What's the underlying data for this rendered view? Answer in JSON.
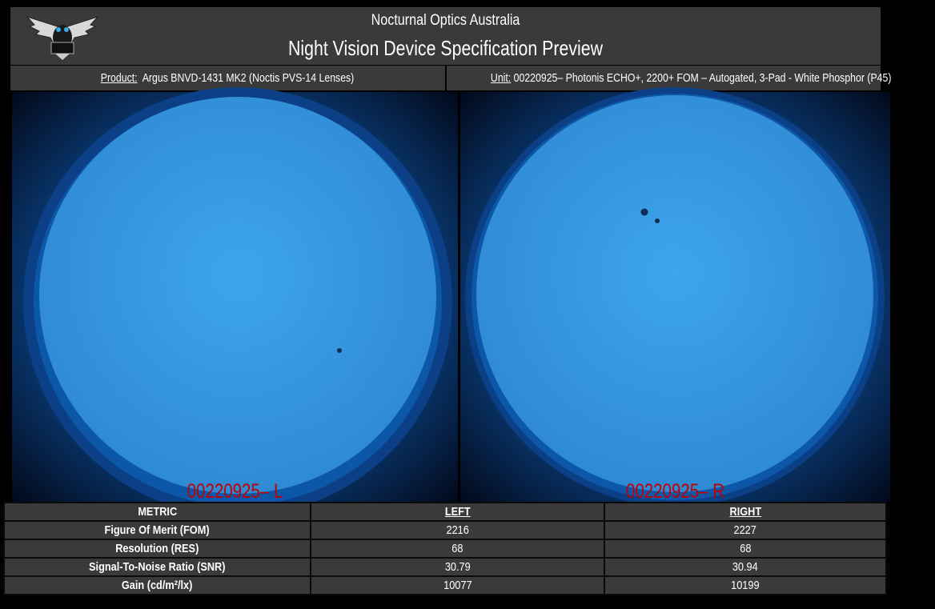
{
  "header": {
    "logo": "owl-logo",
    "company": "Nocturnal Optics Australia",
    "title": "Night Vision Device Specification Preview"
  },
  "product": {
    "label": "Product:",
    "value": "Argus BNVD-1431 MK2 (Noctis PVS-14 Lenses)"
  },
  "unit": {
    "label": "Unit:",
    "value": "00220925– Photonis ECHO+, 2200+ FOM – Autogated, 3-Pad - White Phosphor (P45)"
  },
  "scopes": {
    "left_label": "00220925– L",
    "right_label": "00220925– R",
    "label_color": "#c00000",
    "phosphor_color": "#3a9be0"
  },
  "table": {
    "headers": [
      "METRIC",
      "LEFT",
      "RIGHT"
    ],
    "rows": [
      {
        "metric": "Figure Of Merit (FOM)",
        "left": "2216",
        "right": "2227"
      },
      {
        "metric": "Resolution (RES)",
        "left": "68",
        "right": "68"
      },
      {
        "metric": "Signal-To-Noise Ratio (SNR)",
        "left": "30.79",
        "right": "30.94"
      },
      {
        "metric": "Gain (cd/m²/lx)",
        "left": "10077",
        "right": "10199"
      }
    ]
  }
}
